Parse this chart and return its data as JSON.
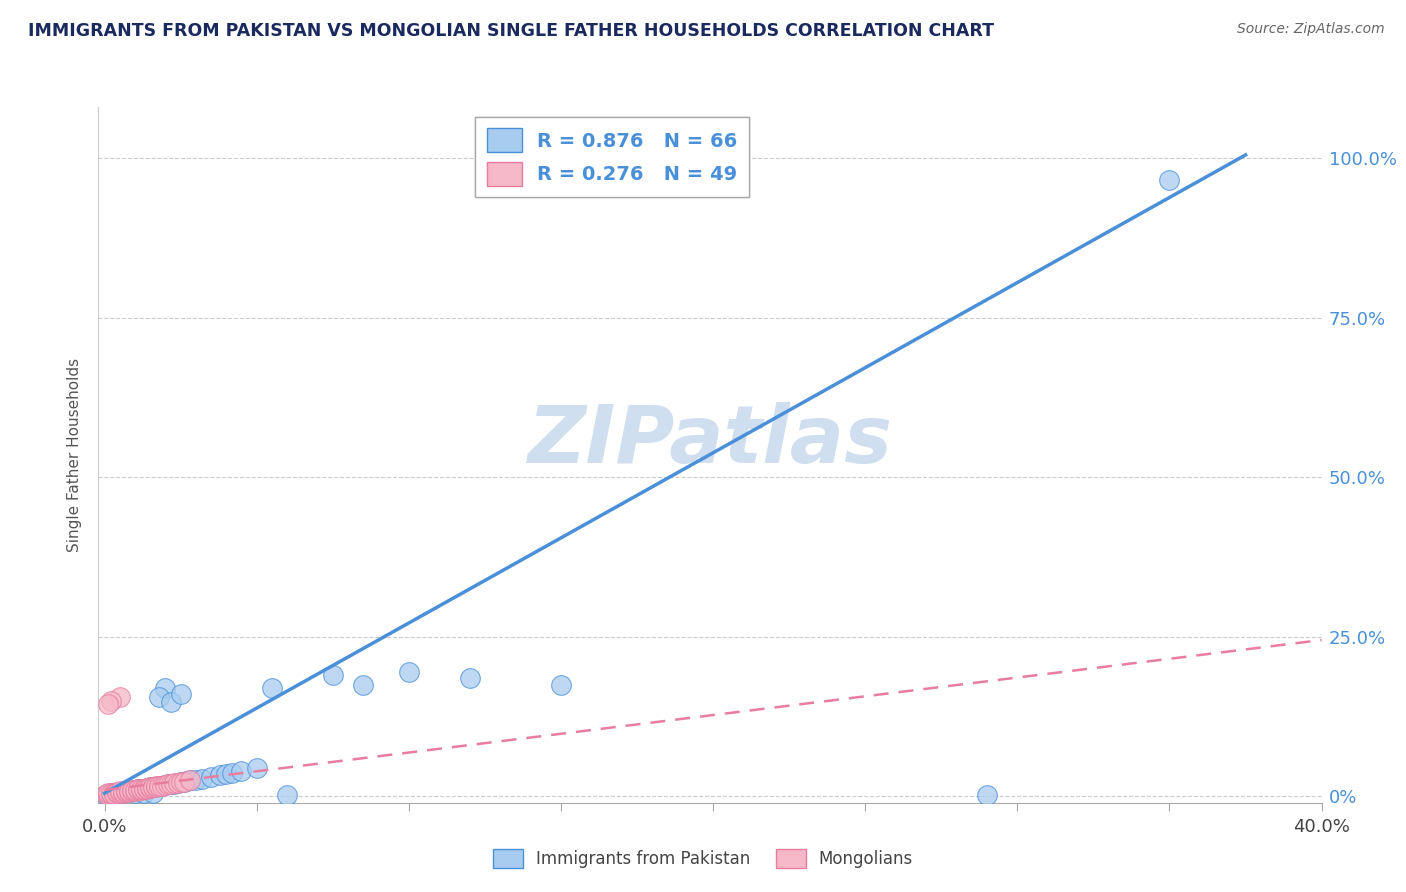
{
  "title": "IMMIGRANTS FROM PAKISTAN VS MONGOLIAN SINGLE FATHER HOUSEHOLDS CORRELATION CHART",
  "source": "Source: ZipAtlas.com",
  "ylabel": "Single Father Households",
  "ytick_vals": [
    0,
    0.25,
    0.5,
    0.75,
    1.0
  ],
  "ytick_labels": [
    "0%",
    "25.0%",
    "50.0%",
    "75.0%",
    "100.0%"
  ],
  "xtick_vals": [
    0,
    0.05,
    0.1,
    0.15,
    0.2,
    0.25,
    0.3,
    0.35,
    0.4
  ],
  "xlim": [
    -0.002,
    0.4
  ],
  "ylim": [
    -0.01,
    1.08
  ],
  "blue_R": 0.876,
  "blue_N": 66,
  "pink_R": 0.276,
  "pink_N": 49,
  "legend_label_blue": "Immigrants from Pakistan",
  "legend_label_pink": "Mongolians",
  "watermark": "ZIPatlas",
  "blue_color": "#a8ccf0",
  "blue_line_color": "#4a90d9",
  "pink_color": "#f5b8c8",
  "pink_line_color": "#e87da0",
  "background_color": "#ffffff",
  "title_color": "#1a2a5e",
  "source_color": "#666666",
  "watermark_color": "#d0dff0",
  "blue_scatter": [
    [
      0.0005,
      0.003
    ],
    [
      0.001,
      0.004
    ],
    [
      0.001,
      0.003
    ],
    [
      0.002,
      0.005
    ],
    [
      0.002,
      0.004
    ],
    [
      0.003,
      0.004
    ],
    [
      0.003,
      0.006
    ],
    [
      0.004,
      0.005
    ],
    [
      0.004,
      0.004
    ],
    [
      0.005,
      0.006
    ],
    [
      0.005,
      0.005
    ],
    [
      0.006,
      0.007
    ],
    [
      0.006,
      0.006
    ],
    [
      0.007,
      0.007
    ],
    [
      0.007,
      0.008
    ],
    [
      0.008,
      0.008
    ],
    [
      0.008,
      0.007
    ],
    [
      0.009,
      0.009
    ],
    [
      0.009,
      0.008
    ],
    [
      0.01,
      0.009
    ],
    [
      0.01,
      0.01
    ],
    [
      0.011,
      0.01
    ],
    [
      0.011,
      0.011
    ],
    [
      0.012,
      0.011
    ],
    [
      0.012,
      0.012
    ],
    [
      0.013,
      0.012
    ],
    [
      0.014,
      0.013
    ],
    [
      0.015,
      0.013
    ],
    [
      0.015,
      0.014
    ],
    [
      0.016,
      0.015
    ],
    [
      0.017,
      0.015
    ],
    [
      0.018,
      0.016
    ],
    [
      0.019,
      0.017
    ],
    [
      0.02,
      0.018
    ],
    [
      0.021,
      0.019
    ],
    [
      0.022,
      0.02
    ],
    [
      0.023,
      0.02
    ],
    [
      0.024,
      0.021
    ],
    [
      0.025,
      0.022
    ],
    [
      0.026,
      0.022
    ],
    [
      0.027,
      0.024
    ],
    [
      0.028,
      0.025
    ],
    [
      0.03,
      0.026
    ],
    [
      0.032,
      0.028
    ],
    [
      0.035,
      0.03
    ],
    [
      0.038,
      0.033
    ],
    [
      0.04,
      0.035
    ],
    [
      0.042,
      0.037
    ],
    [
      0.045,
      0.04
    ],
    [
      0.05,
      0.044
    ],
    [
      0.02,
      0.17
    ],
    [
      0.06,
      0.003
    ],
    [
      0.075,
      0.19
    ],
    [
      0.1,
      0.195
    ],
    [
      0.12,
      0.185
    ],
    [
      0.15,
      0.175
    ],
    [
      0.018,
      0.155
    ],
    [
      0.022,
      0.148
    ],
    [
      0.025,
      0.16
    ],
    [
      0.055,
      0.17
    ],
    [
      0.085,
      0.175
    ],
    [
      0.29,
      0.003
    ],
    [
      0.35,
      0.965
    ],
    [
      0.01,
      0.005
    ],
    [
      0.013,
      0.006
    ],
    [
      0.016,
      0.006
    ]
  ],
  "pink_scatter": [
    [
      0.0005,
      0.004
    ],
    [
      0.001,
      0.003
    ],
    [
      0.001,
      0.005
    ],
    [
      0.002,
      0.004
    ],
    [
      0.002,
      0.006
    ],
    [
      0.003,
      0.005
    ],
    [
      0.003,
      0.004
    ],
    [
      0.004,
      0.005
    ],
    [
      0.004,
      0.007
    ],
    [
      0.005,
      0.006
    ],
    [
      0.005,
      0.008
    ],
    [
      0.006,
      0.006
    ],
    [
      0.006,
      0.007
    ],
    [
      0.007,
      0.007
    ],
    [
      0.007,
      0.008
    ],
    [
      0.008,
      0.007
    ],
    [
      0.008,
      0.009
    ],
    [
      0.009,
      0.008
    ],
    [
      0.009,
      0.01
    ],
    [
      0.01,
      0.009
    ],
    [
      0.01,
      0.01
    ],
    [
      0.011,
      0.01
    ],
    [
      0.011,
      0.011
    ],
    [
      0.012,
      0.01
    ],
    [
      0.012,
      0.011
    ],
    [
      0.013,
      0.011
    ],
    [
      0.013,
      0.012
    ],
    [
      0.014,
      0.012
    ],
    [
      0.014,
      0.013
    ],
    [
      0.015,
      0.013
    ],
    [
      0.015,
      0.014
    ],
    [
      0.016,
      0.014
    ],
    [
      0.016,
      0.015
    ],
    [
      0.017,
      0.015
    ],
    [
      0.017,
      0.016
    ],
    [
      0.018,
      0.016
    ],
    [
      0.018,
      0.017
    ],
    [
      0.019,
      0.017
    ],
    [
      0.02,
      0.018
    ],
    [
      0.021,
      0.019
    ],
    [
      0.022,
      0.02
    ],
    [
      0.023,
      0.021
    ],
    [
      0.024,
      0.021
    ],
    [
      0.025,
      0.022
    ],
    [
      0.026,
      0.023
    ],
    [
      0.028,
      0.025
    ],
    [
      0.005,
      0.155
    ],
    [
      0.002,
      0.15
    ],
    [
      0.001,
      0.145
    ]
  ],
  "blue_line_x": [
    0.0,
    0.375
  ],
  "blue_line_y": [
    0.005,
    1.005
  ],
  "pink_line_x": [
    0.0,
    0.4
  ],
  "pink_line_y": [
    0.01,
    0.245
  ]
}
